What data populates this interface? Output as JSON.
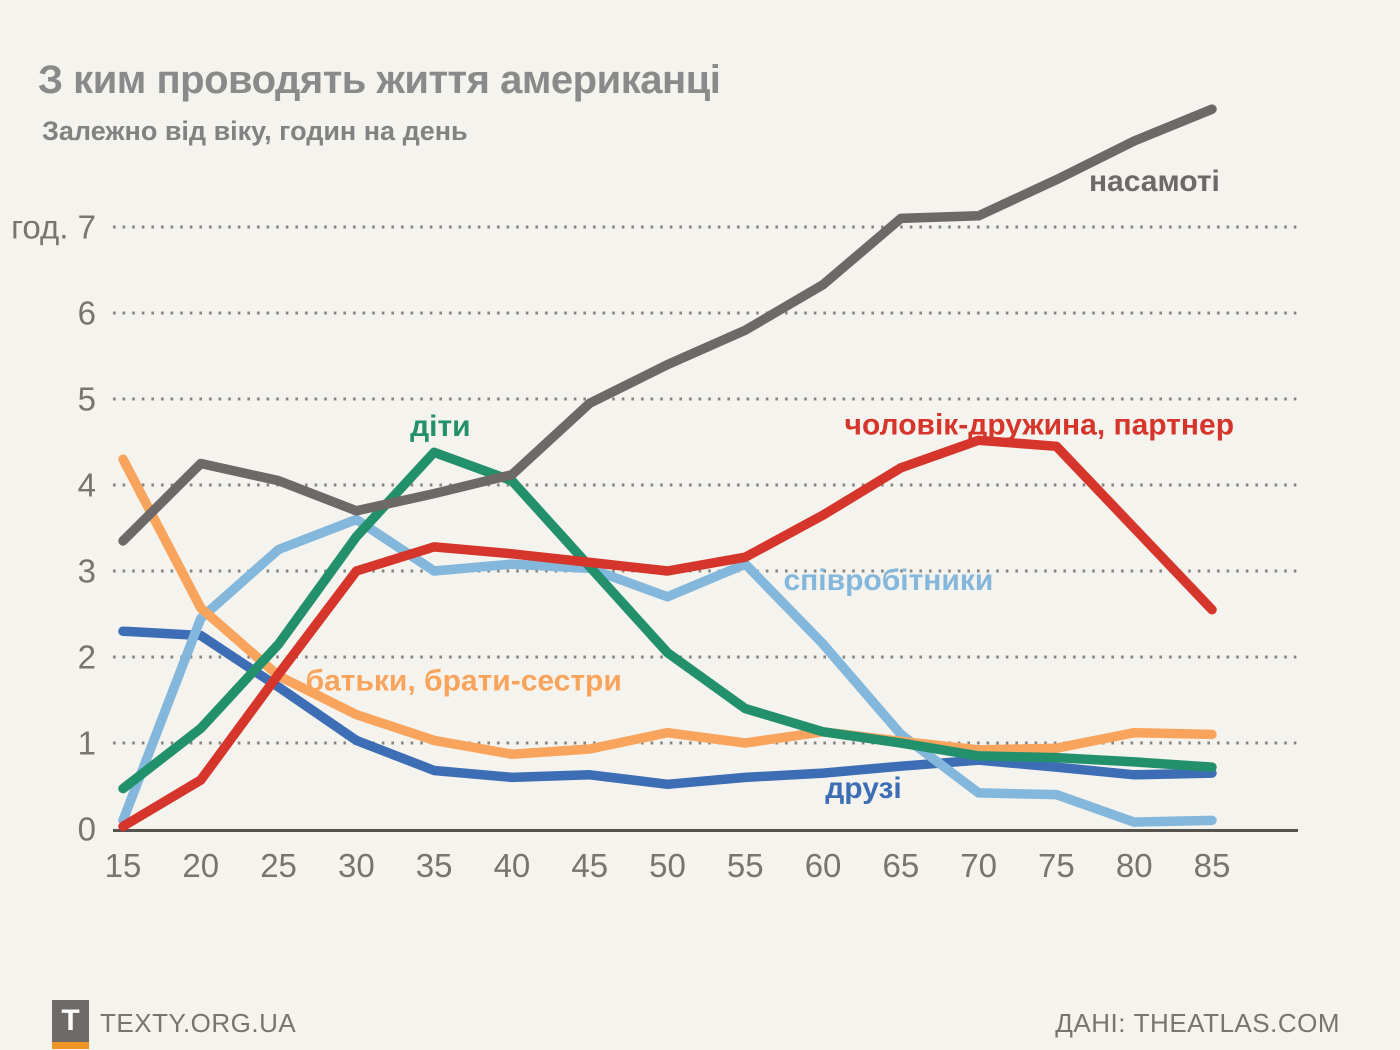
{
  "page": {
    "title": "З ким проводять життя американці",
    "subtitle": "Залежно від віку, годин на день"
  },
  "footer": {
    "logo_letter": "T",
    "brand": "TEXTY.ORG.UA",
    "source": "ДАНІ: THEATLAS.COM"
  },
  "colors": {
    "background": "#f5f3ee",
    "grid_dots": "#6b6b6b",
    "axis_line": "#56524e",
    "tick_label": "#78756f",
    "title": "#8a8a8a",
    "subtitle": "#828282"
  },
  "chart_data": {
    "type": "line",
    "x": [
      15,
      20,
      25,
      30,
      35,
      40,
      45,
      50,
      55,
      60,
      65,
      70,
      75,
      80,
      85
    ],
    "xlabel": "",
    "ylabel": "",
    "y_unit_prefix": "год.",
    "y_ticks": [
      0,
      1,
      2,
      3,
      4,
      5,
      6,
      7
    ],
    "ylim": [
      0,
      8.6
    ],
    "grid": "horizontal-dotted",
    "legend": "inline-colored-labels",
    "series": [
      {
        "key": "friends",
        "name": "друзі",
        "color": "#3d6eb5",
        "values": [
          2.3,
          2.25,
          1.65,
          1.03,
          0.68,
          0.6,
          0.63,
          0.52,
          0.6,
          0.65,
          0.73,
          0.8,
          0.72,
          0.63,
          0.65
        ],
        "label": {
          "x": 62.6,
          "y": 0.48
        }
      },
      {
        "key": "coworkers",
        "name": "співробітники",
        "color": "#83b7dc",
        "values": [
          0.1,
          2.45,
          3.25,
          3.6,
          3.0,
          3.08,
          3.03,
          2.7,
          3.08,
          2.15,
          1.1,
          0.42,
          0.4,
          0.08,
          0.1
        ],
        "label": {
          "x": 64.2,
          "y": 2.9
        }
      },
      {
        "key": "parents-siblings",
        "name": "батьки, брати-сестри",
        "color": "#f9a45c",
        "values": [
          4.3,
          2.57,
          1.78,
          1.33,
          1.03,
          0.87,
          0.93,
          1.12,
          1.0,
          1.13,
          1.02,
          0.92,
          0.94,
          1.12,
          1.1
        ],
        "label": {
          "x": 36.9,
          "y": 1.73
        }
      },
      {
        "key": "children",
        "name": "діти",
        "color": "#23906c",
        "values": [
          0.47,
          1.17,
          2.15,
          3.4,
          4.38,
          4.05,
          3.05,
          2.05,
          1.4,
          1.13,
          1.0,
          0.85,
          0.83,
          0.78,
          0.72
        ],
        "label": {
          "x": 35.4,
          "y": 4.69
        }
      },
      {
        "key": "spouse-partner",
        "name": "чоловік-дружина, партнер",
        "color": "#d6352b",
        "values": [
          0.03,
          0.57,
          1.8,
          3.0,
          3.28,
          3.2,
          3.1,
          3.0,
          3.16,
          3.65,
          4.2,
          4.52,
          4.45,
          3.5,
          2.55
        ],
        "label": {
          "x": 73.9,
          "y": 4.71
        }
      },
      {
        "key": "alone",
        "name": "насамоті",
        "color": "#6c6966",
        "values": [
          3.35,
          4.25,
          4.05,
          3.7,
          3.9,
          4.12,
          4.95,
          5.4,
          5.8,
          6.33,
          7.1,
          7.13,
          7.55,
          8.0,
          8.37
        ],
        "label": {
          "x": 81.3,
          "y": 7.54
        }
      }
    ]
  }
}
